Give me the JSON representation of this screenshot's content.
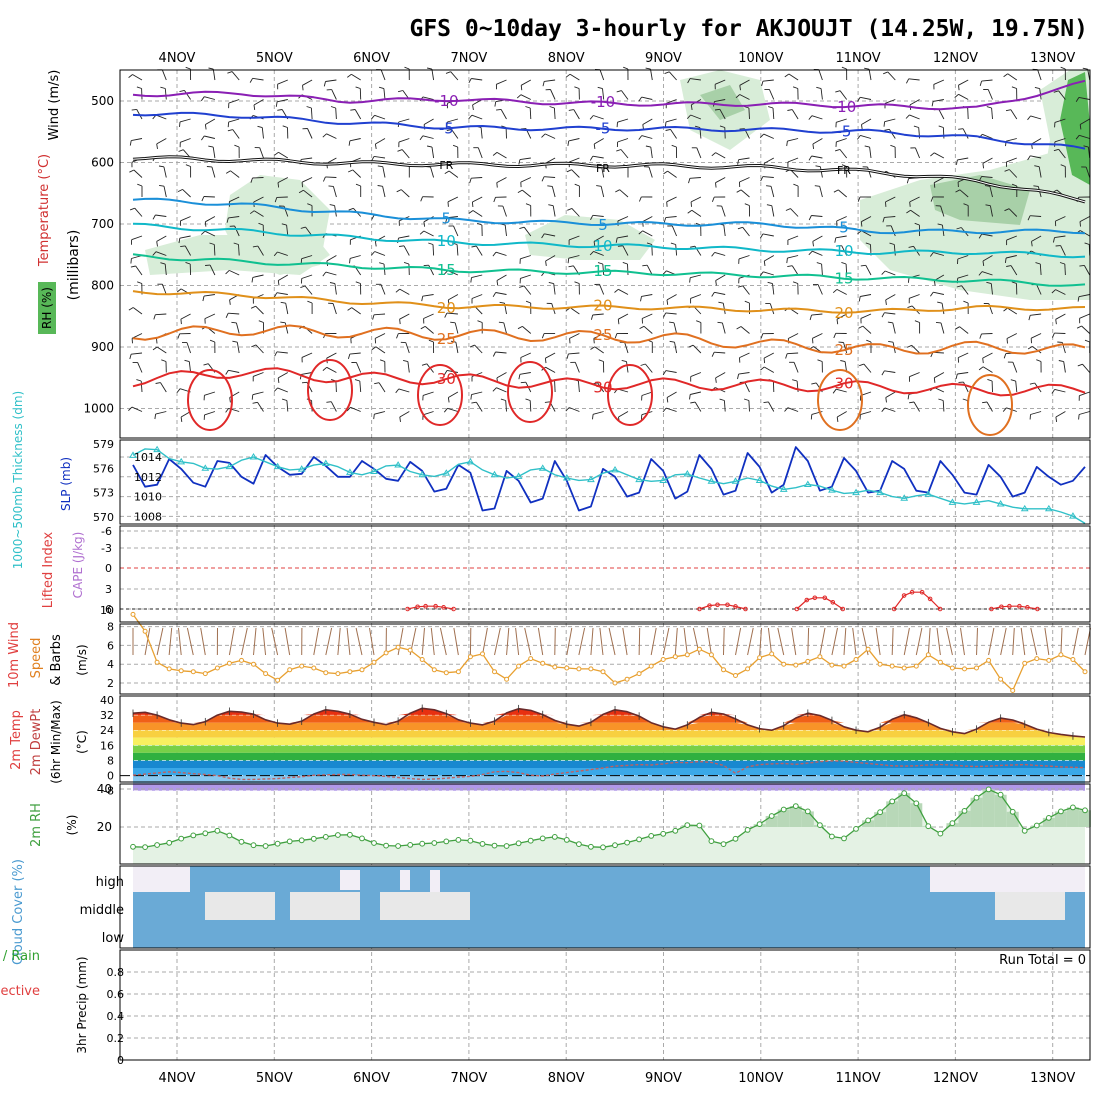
{
  "title": "GFS 0~10day 3-hourly for AKJOUJT (14.25W, 19.75N)",
  "dates": [
    "4NOV",
    "5NOV",
    "6NOV",
    "7NOV",
    "8NOV",
    "9NOV",
    "10NOV",
    "11NOV",
    "12NOV",
    "13NOV"
  ],
  "colors": {
    "purple": "#8a1fb4",
    "blue": "#2040d0",
    "black": "#111111",
    "skyblue": "#1a8fd8",
    "cyan": "#10b8c8",
    "teal": "#10c090",
    "orange": "#e0901a",
    "darkorange": "#e07020",
    "red": "#e02828",
    "magenta": "#d0107a",
    "rh_light": "#d8edd8",
    "rh_mid": "#a8d0a8",
    "rh_dark": "#58b858",
    "slp": "#1030c0",
    "thick": "#30c0c8",
    "cloud": "#6aaad6",
    "wind": "#e8a030",
    "barb": "#a07050",
    "rh2m": "#40a040"
  },
  "chart_data": [
    {
      "type": "line",
      "panel": "upper-air",
      "ylabels": [
        "Wind (m/s)",
        "Temperature (°C)",
        "RH (%)",
        "(millibars)"
      ],
      "yticks": [
        "500",
        "600",
        "700",
        "800",
        "900",
        "1000"
      ],
      "contours": [
        {
          "label": "-10",
          "level": "-10",
          "color": "purple",
          "p_start": [
            490,
            487,
            500,
            497,
            503,
            505,
            505,
            508,
            512,
            470
          ]
        },
        {
          "label": "-5",
          "level": "-5",
          "color": "blue",
          "p_start": [
            520,
            524,
            535,
            543,
            545,
            545,
            547,
            550,
            560,
            578
          ]
        },
        {
          "label": "FR",
          "level": "0",
          "color": "black",
          "p_start": [
            592,
            596,
            601,
            603,
            604,
            605,
            608,
            615,
            630,
            662
          ]
        },
        {
          "label": "5",
          "level": "5",
          "color": "skyblue",
          "p_start": [
            660,
            668,
            682,
            694,
            698,
            700,
            700,
            712,
            712,
            712
          ]
        },
        {
          "label": "10",
          "level": "10",
          "color": "cyan",
          "p_start": [
            702,
            711,
            721,
            730,
            734,
            737,
            742,
            746,
            746,
            752
          ]
        },
        {
          "label": "15",
          "level": "15",
          "color": "teal",
          "p_start": [
            752,
            761,
            768,
            775,
            778,
            780,
            784,
            788,
            792,
            800
          ]
        },
        {
          "label": "20",
          "level": "20",
          "color": "orange",
          "p_start": [
            810,
            815,
            826,
            834,
            835,
            836,
            840,
            842,
            836,
            838
          ]
        },
        {
          "label": "25",
          "level": "25",
          "color": "darkorange",
          "p_start": [
            880,
            872,
            876,
            880,
            882,
            885,
            896,
            904,
            900,
            905
          ]
        },
        {
          "label": "30",
          "level": "30",
          "color": "red",
          "p_start": [
            955,
            940,
            950,
            952,
            960,
            960,
            962,
            965,
            970,
            970
          ]
        }
      ],
      "rh_levels": [
        "30",
        "50",
        "70"
      ]
    },
    {
      "type": "line",
      "panel": "slp-thickness",
      "ylabel_left": "1000~500mb Thickness (dm)",
      "ylabel_right": "SLP (mb)",
      "left_ticks": [
        "579",
        "576",
        "573",
        "570"
      ],
      "right_ticks": [
        "1014",
        "1012",
        "1010",
        "1008"
      ],
      "slp": [
        1013.2,
        1011.0,
        1011.2,
        1013.8,
        1012.8,
        1011.4,
        1011.0,
        1013.6,
        1013.4,
        1012.0,
        1011.3,
        1014.2,
        1013.0,
        1012.2,
        1012.3,
        1014.0,
        1013.1,
        1012.0,
        1012.0,
        1013.6,
        1012.8,
        1011.8,
        1011.6,
        1013.5,
        1012.6,
        1010.5,
        1010.8,
        1013.2,
        1012.4,
        1008.6,
        1008.8,
        1012.6,
        1011.6,
        1009.4,
        1009.8,
        1013.6,
        1011.6,
        1008.6,
        1009.0,
        1012.8,
        1012.0,
        1010.0,
        1010.4,
        1013.8,
        1012.6,
        1009.8,
        1010.5,
        1014.2,
        1012.8,
        1010.2,
        1010.6,
        1014.4,
        1013.0,
        1010.4,
        1011.2,
        1015.0,
        1013.6,
        1010.6,
        1011.0,
        1013.9,
        1012.6,
        1010.4,
        1010.6,
        1013.6,
        1012.8,
        1010.6,
        1010.4,
        1013.6,
        1012.2,
        1010.4,
        1010.2,
        1013.2,
        1012.0,
        1010.0,
        1010.4,
        1013.0,
        1012.0,
        1011.2,
        1011.6,
        1013.0
      ],
      "thickness": [
        577.6,
        578.4,
        578.3,
        577.2,
        576.8,
        576.6,
        576.0,
        575.9,
        576.2,
        577.0,
        577.4,
        576.8,
        576.2,
        575.8,
        575.9,
        576.4,
        576.6,
        576.2,
        575.5,
        575.2,
        575.6,
        576.3,
        576.4,
        575.6,
        575.2,
        575.0,
        575.4,
        576.5,
        576.8,
        575.8,
        575.2,
        574.8,
        575.0,
        575.8,
        576.0,
        575.2,
        574.8,
        574.5,
        574.6,
        575.4,
        575.8,
        575.2,
        574.6,
        574.4,
        574.5,
        575.2,
        575.3,
        574.8,
        574.4,
        574.1,
        574.4,
        574.8,
        574.5,
        573.8,
        573.4,
        573.6,
        574.0,
        573.8,
        573.3,
        572.9,
        573.0,
        573.3,
        573.0,
        572.5,
        572.3,
        572.6,
        572.8,
        572.3,
        571.8,
        571.6,
        571.8,
        572.0,
        571.6,
        571.2,
        571.0,
        571.0,
        571.0,
        570.6,
        570.1,
        569.2
      ]
    },
    {
      "type": "line",
      "panel": "cape-li",
      "ylabel_left": "Lifted Index",
      "ylabel_right": "CAPE (J/kg)",
      "li_ticks": [
        "6",
        "3",
        "0",
        "-3",
        "-6"
      ],
      "cape_ticks": [
        "10"
      ],
      "cape_events": [
        {
          "day": "6NOV",
          "value": 10.4
        },
        {
          "day": "9NOV",
          "value": 10.6
        },
        {
          "day": "10NOV",
          "value": 11.6
        },
        {
          "day": "11NOV",
          "value": 12.4
        },
        {
          "day": "12NOV",
          "value": 10.4
        }
      ]
    },
    {
      "type": "line",
      "panel": "wind10m",
      "ylabel": "10m Wind Speed & Barbs (m/s)",
      "yticks": [
        "8",
        "6",
        "4",
        "2"
      ],
      "speed": [
        9.3,
        7.5,
        4.2,
        3.5,
        3.3,
        3.2,
        3.0,
        3.6,
        4.1,
        4.4,
        4.0,
        3.0,
        2.3,
        3.4,
        3.8,
        3.6,
        3.1,
        3.0,
        3.2,
        3.4,
        4.2,
        5.2,
        5.8,
        5.5,
        4.5,
        3.4,
        3.1,
        3.2,
        4.8,
        5.1,
        3.2,
        2.4,
        3.8,
        4.6,
        4.1,
        3.7,
        3.6,
        3.5,
        3.5,
        3.2,
        2.0,
        2.4,
        3.0,
        3.8,
        4.5,
        4.8,
        5.0,
        5.6,
        5.0,
        3.4,
        2.8,
        3.5,
        4.7,
        5.1,
        4.0,
        3.9,
        4.3,
        4.8,
        3.9,
        3.8,
        4.5,
        5.6,
        4.0,
        3.8,
        3.6,
        3.8,
        5.0,
        4.2,
        3.6,
        3.5,
        3.6,
        4.4,
        2.4,
        1.2,
        4.1,
        4.6,
        4.4,
        5.0,
        4.5,
        3.2
      ]
    },
    {
      "type": "area",
      "panel": "temp2m",
      "ylabel": "2m Temp 2m DewPt (6hr Min/Max) (°C)",
      "yticks": [
        "40",
        "32",
        "24",
        "16",
        "8",
        "0",
        "-8"
      ],
      "temp": [
        33.0,
        33.5,
        32.0,
        29.5,
        27.8,
        27.0,
        28.5,
        32.0,
        34.0,
        33.6,
        32.5,
        29.5,
        27.8,
        27.2,
        28.8,
        32.6,
        34.8,
        34.0,
        32.5,
        29.8,
        28.2,
        27.0,
        28.8,
        33.0,
        35.6,
        34.8,
        32.8,
        29.5,
        27.8,
        26.8,
        28.8,
        33.2,
        35.4,
        34.5,
        32.3,
        29.2,
        27.2,
        26.2,
        28.2,
        32.4,
        34.8,
        33.8,
        31.5,
        28.0,
        25.8,
        24.6,
        26.8,
        30.8,
        33.5,
        32.6,
        30.0,
        26.8,
        24.8,
        24.0,
        26.4,
        30.5,
        33.0,
        31.8,
        29.2,
        25.8,
        24.0,
        23.2,
        25.6,
        29.8,
        32.2,
        30.6,
        28.0,
        25.0,
        23.2,
        22.2,
        24.6,
        28.2,
        30.4,
        29.4,
        27.2,
        24.6,
        22.8,
        21.8,
        21.0,
        20.4
      ],
      "dewpt": [
        0.2,
        0.8,
        1.4,
        2.0,
        1.6,
        1.0,
        0.6,
        0.0,
        -1.4,
        -2.0,
        -2.0,
        -1.8,
        -1.6,
        -1.0,
        -0.6,
        0.2,
        0.4,
        0.6,
        0.6,
        0.2,
        0.0,
        -0.4,
        -1.0,
        -1.6,
        -2.0,
        -1.8,
        -1.4,
        -0.8,
        -0.4,
        0.6,
        2.0,
        2.2,
        1.6,
        0.2,
        -0.2,
        0.8,
        1.6,
        2.4,
        3.2,
        4.0,
        5.0,
        5.4,
        5.8,
        5.6,
        6.2,
        7.0,
        6.8,
        7.4,
        7.0,
        5.4,
        1.2,
        4.6,
        5.8,
        6.2,
        6.4,
        6.0,
        6.6,
        7.4,
        7.8,
        7.6,
        7.0,
        6.4,
        5.8,
        5.2,
        5.0,
        5.2,
        5.6,
        5.8,
        5.6,
        5.0,
        4.8,
        5.0,
        5.4,
        5.6,
        5.8,
        5.4,
        5.0,
        4.6,
        4.4,
        4.2
      ]
    },
    {
      "type": "area",
      "panel": "rh2m",
      "ylabel": "2m RH (%)",
      "yticks": [
        "40",
        "20"
      ],
      "rh": [
        9.6,
        9.4,
        10.5,
        11.7,
        13.9,
        15.6,
        16.7,
        18.0,
        15.5,
        12.2,
        10.4,
        10.0,
        11.2,
        12.4,
        13.0,
        13.8,
        14.8,
        15.8,
        15.9,
        14.0,
        11.6,
        10.2,
        10.0,
        10.6,
        11.2,
        11.6,
        12.4,
        13.2,
        12.8,
        11.1,
        10.2,
        10.0,
        11.4,
        12.8,
        14.0,
        14.8,
        13.2,
        11.0,
        9.6,
        9.3,
        10.4,
        11.8,
        13.5,
        15.3,
        16.4,
        18.0,
        21.0,
        20.8,
        12.6,
        11.0,
        13.8,
        18.5,
        21.5,
        25.8,
        29.2,
        31.0,
        28.2,
        21.0,
        15.0,
        14.0,
        19.0,
        23.5,
        27.8,
        33.5,
        37.8,
        32.5,
        20.4,
        16.5,
        22.0,
        28.5,
        35.4,
        39.8,
        37.0,
        28.0,
        18.0,
        20.8,
        24.8,
        28.2,
        30.3,
        28.8
      ]
    },
    {
      "type": "heatmap",
      "panel": "cloud-cover",
      "ylabel": "Cloud Cover (%)",
      "levels": [
        "high",
        "middle",
        "low"
      ],
      "total_label": "Run Total = 0"
    },
    {
      "type": "bar",
      "panel": "precip",
      "ylabel": "3hr Precip (mm)",
      "legend": [
        "Total / Rain",
        "Convective"
      ],
      "yticks": [
        "0.8",
        "0.6",
        "0.4",
        "0.2",
        "0"
      ],
      "run_total": "Run Total = 0",
      "values": []
    }
  ]
}
